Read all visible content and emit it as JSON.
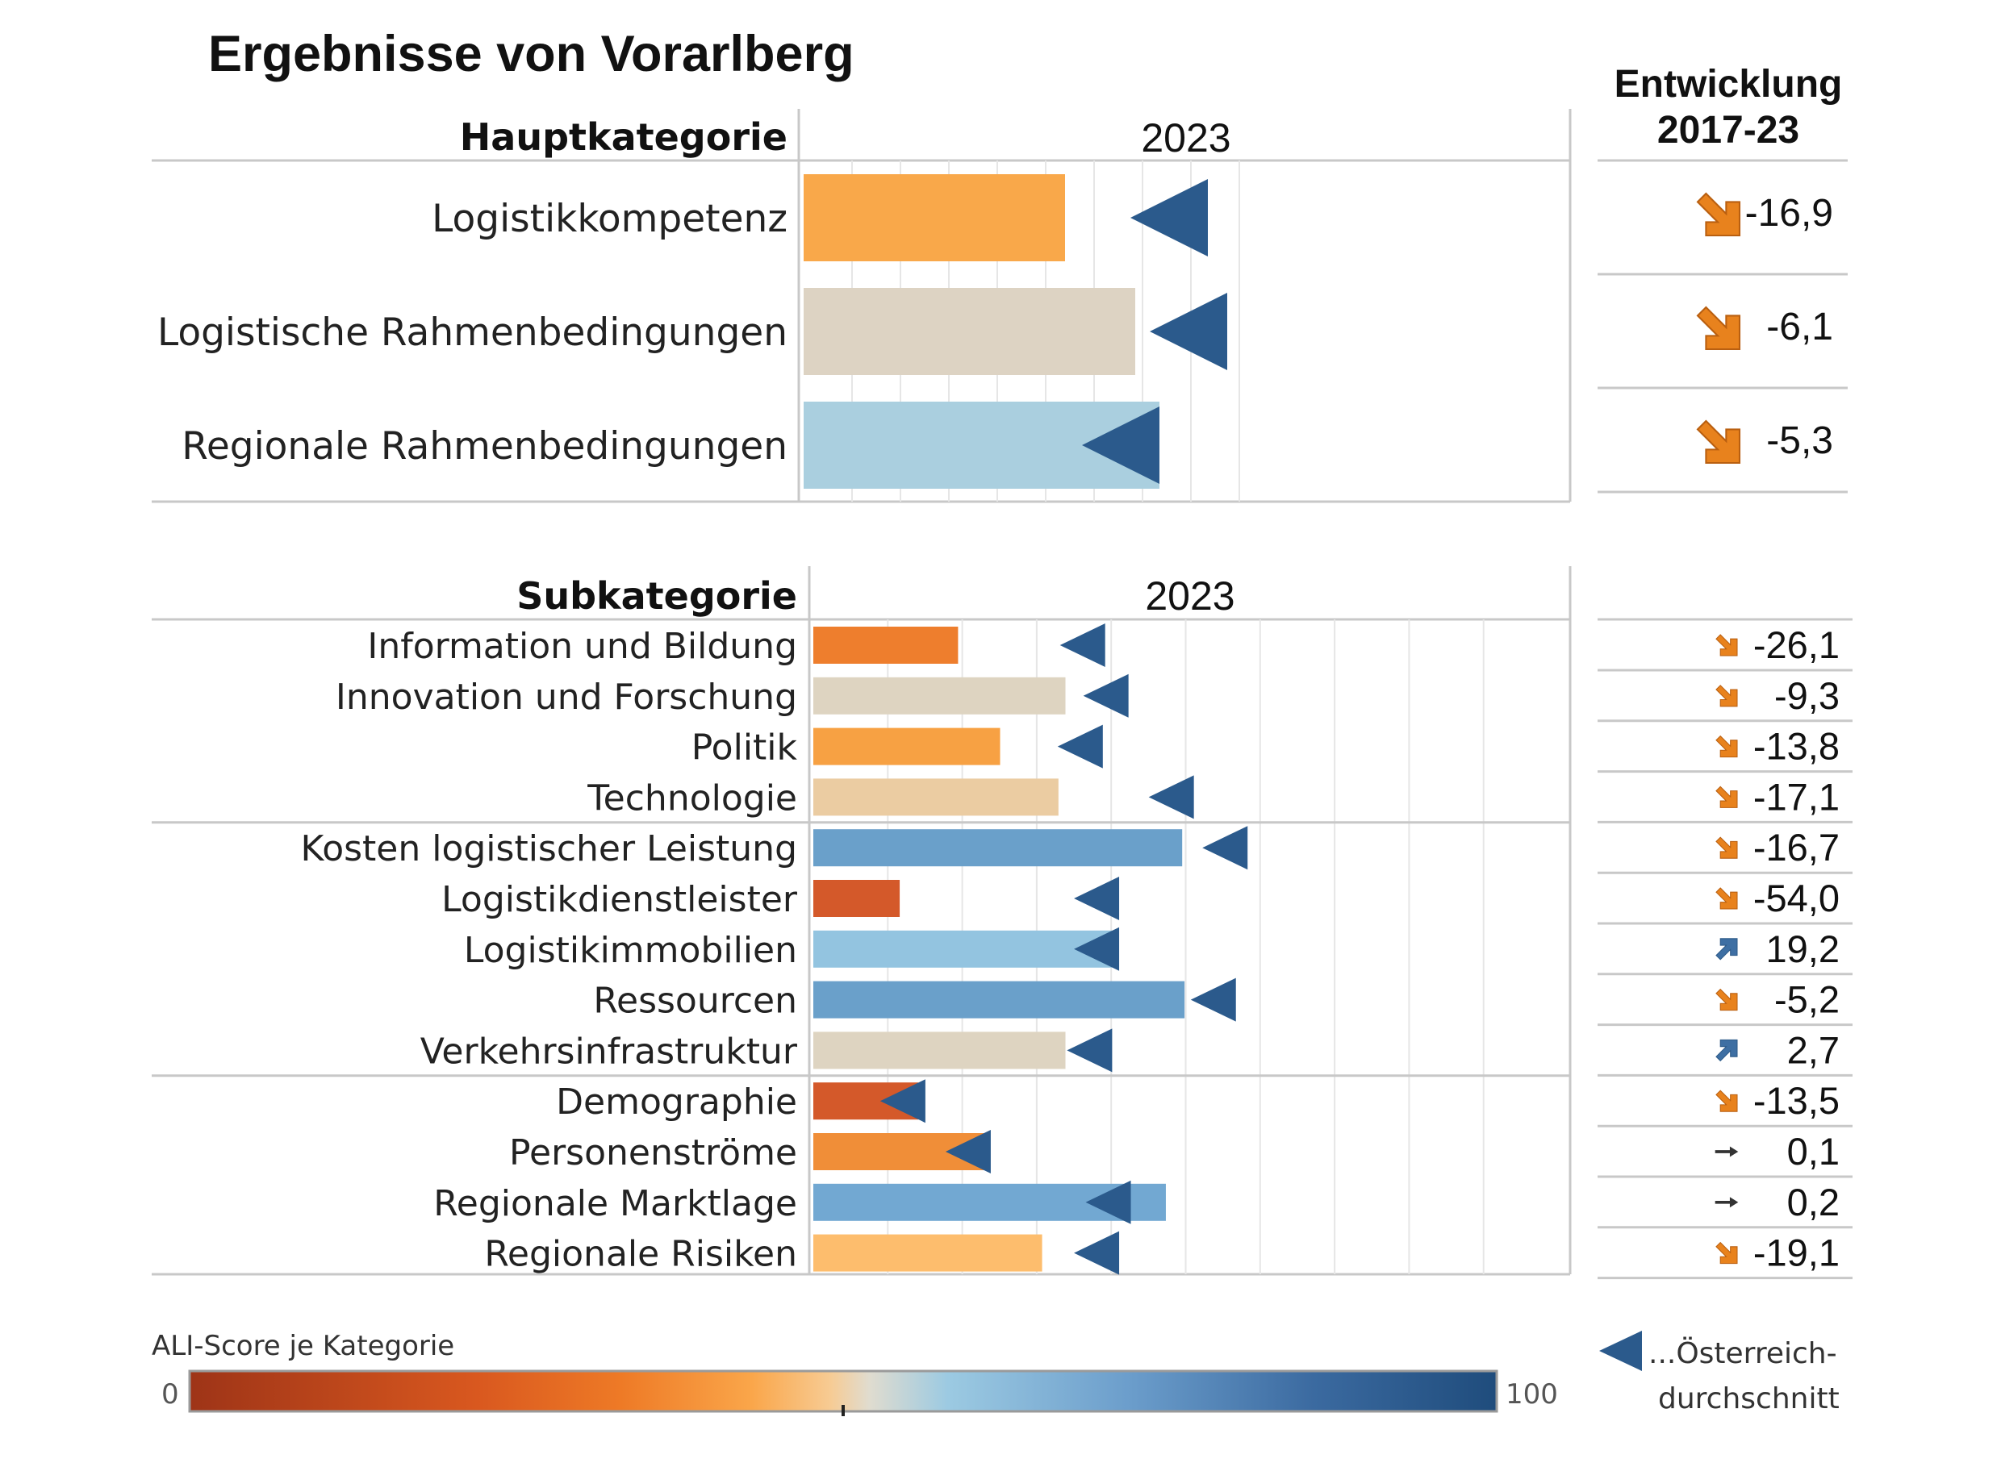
{
  "title": "Ergebnisse von Vorarlberg",
  "main_section": {
    "header": "Hauptkategorie",
    "year": "2023"
  },
  "sub_section": {
    "header": "Subkategorie",
    "year": "2023"
  },
  "entwicklung": {
    "line1": "Entwicklung",
    "line2": "2017-23"
  },
  "legend": {
    "title": "ALI-Score je Kategorie",
    "min": "0",
    "max": "100",
    "avg_line1": "...Österreich-",
    "avg_line2": "durchschnitt"
  },
  "colors": {
    "up": "#3e6fa3",
    "down": "#e8821d",
    "neutral": "#333333",
    "marker": "#2b5a8c",
    "grid": "#e6e6e6",
    "divider": "#c8c8c8"
  },
  "chart_data": [
    {
      "type": "bar",
      "title": "Hauptkategorie",
      "xlim": [
        0,
        100
      ],
      "categories": [
        "Logistikkompetenz",
        "Logistische Rahmenbedingungen",
        "Regionale Rahmenbedingungen"
      ],
      "values": [
        54,
        68.5,
        73.5
      ],
      "oesterreich_durchschnitt": [
        83.5,
        87.5,
        73.5
      ],
      "entwicklung_2017_23": [
        "-16,9",
        "-6,1",
        "-5,3"
      ],
      "trend": [
        "down",
        "down",
        "down"
      ],
      "bar_colors": [
        "#f9a84a",
        "#ddd3c3",
        "#aacfdf"
      ]
    },
    {
      "type": "bar",
      "title": "Subkategorie",
      "xlim": [
        0,
        100
      ],
      "groups": [
        [
          "Information und Bildung",
          "Innovation und Forschung",
          "Politik",
          "Technologie"
        ],
        [
          "Kosten logistischer Leistung",
          "Logistikdienstleister",
          "Logistikimmobilien",
          "Ressourcen",
          "Verkehrsinfrastruktur"
        ],
        [
          "Demographie",
          "Personenströme",
          "Regionale Marktlage",
          "Regionale Risiken"
        ]
      ],
      "categories": [
        "Information und Bildung",
        "Innovation und Forschung",
        "Politik",
        "Technologie",
        "Kosten logistischer Leistung",
        "Logistikdienstleister",
        "Logistikimmobilien",
        "Ressourcen",
        "Verkehrsinfrastruktur",
        "Demographie",
        "Personenströme",
        "Regionale Marktlage",
        "Regionale Risiken"
      ],
      "values": [
        31,
        54,
        40,
        52.5,
        79,
        18.5,
        64,
        79.5,
        54,
        22.5,
        36.5,
        75.5,
        49
      ],
      "oesterreich_durchschnitt": [
        62.5,
        67.5,
        62,
        81.5,
        93,
        65.5,
        65.5,
        90.5,
        64,
        24,
        38,
        68,
        65.5
      ],
      "entwicklung_2017_23": [
        "-26,1",
        "-9,3",
        "-13,8",
        "-17,1",
        "-16,7",
        "-54,0",
        "19,2",
        "-5,2",
        "2,7",
        "-13,5",
        "0,1",
        "0,2",
        "-19,1"
      ],
      "trend": [
        "down",
        "down",
        "down",
        "down",
        "down",
        "down",
        "up",
        "down",
        "up",
        "down",
        "flat",
        "flat",
        "down"
      ],
      "bar_colors": [
        "#ee7e2d",
        "#ded4c1",
        "#f7a143",
        "#ebcca2",
        "#6aa0ca",
        "#d4592a",
        "#93c4e0",
        "#6aa0ca",
        "#ded4c1",
        "#d4592a",
        "#f08e38",
        "#72a8d2",
        "#fdbd6d"
      ]
    }
  ]
}
